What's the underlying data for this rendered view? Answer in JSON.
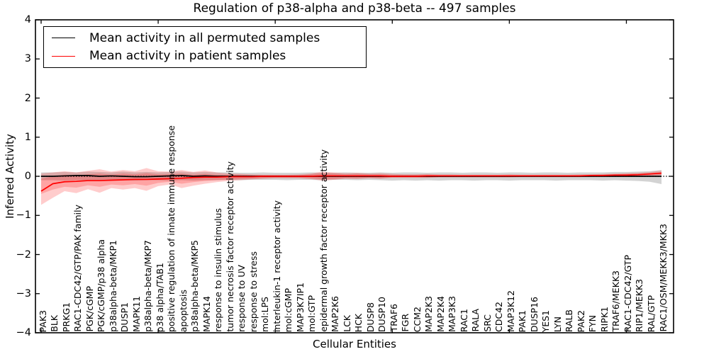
{
  "chart_data": {
    "type": "line",
    "title": "Regulation of p38-alpha and p38-beta -- 497 samples",
    "xlabel": "Cellular Entities",
    "ylabel": "Inferred Activity",
    "ylim": [
      -4,
      4
    ],
    "grid": false,
    "legend_position": "upper left",
    "zero_line": "dotted",
    "yticks": [
      4,
      3,
      2,
      1,
      0,
      -1,
      -2,
      -3,
      -4
    ],
    "yticklabels": [
      "4",
      "3",
      "2",
      "1",
      "0",
      "−1",
      "−2",
      "−3",
      "−4"
    ],
    "xtick_marks_at": [
      0,
      10,
      20,
      30,
      40,
      50
    ],
    "categories": [
      "PAK3",
      "BLK",
      "PRKG1",
      "RAC1-CDC42/GTP/PAK family",
      "PGK/cGMP",
      "PGK/cGMP/p38 alpha",
      "p38alpha-beta/MKP1",
      "DUSP1",
      "MAPK11",
      "p38alpha-beta/MKP7",
      "p38 alpha/TAB1",
      "positive regulation of innate immune response",
      "apoptosis",
      "p38alpha-beta/MKP5",
      "MAPK14",
      "response to insulin stimulus",
      "tumor necrosis factor receptor activity",
      "response to UV",
      "response to stress",
      "mol:LPS",
      "interleukin-1 receptor activity",
      "mol:cGMP",
      "MAP3K7IP1",
      "mol:GTP",
      "epidermal growth factor receptor activity",
      "MAP2K6",
      "LCK",
      "HCK",
      "DUSP8",
      "DUSP10",
      "TRAF6",
      "FGR",
      "CCM2",
      "MAP2K3",
      "MAP2K4",
      "MAP3K3",
      "RAC1",
      "RALA",
      "SRC",
      "CDC42",
      "MAP3K12",
      "PAK1",
      "DUSP16",
      "YES1",
      "LYN",
      "RALB",
      "PAK2",
      "FYN",
      "RIPK1",
      "TRAF6/MEKK3",
      "RAC1-CDC42/GTP",
      "RIP1/MEKK3",
      "RAL/GTP",
      "RAC1/OSM/MEKK3/MKK3"
    ],
    "series": [
      {
        "name": "Mean activity in all permuted samples",
        "color": "#000000",
        "values": [
          0.0,
          0.0,
          0.01,
          0.02,
          0.02,
          0.0,
          0.01,
          0.0,
          -0.01,
          -0.01,
          0.0,
          0.01,
          0.02,
          0.0,
          0.01,
          0.0,
          0.0,
          0.0,
          0.0,
          0.0,
          0.0,
          0.0,
          0.0,
          0.0,
          0.0,
          0.0,
          0.0,
          0.0,
          0.0,
          0.0,
          0.0,
          0.0,
          0.0,
          0.0,
          0.0,
          0.0,
          0.0,
          0.0,
          0.0,
          0.0,
          0.0,
          0.0,
          0.0,
          0.0,
          0.0,
          0.0,
          0.0,
          0.0,
          0.0,
          0.0,
          0.0,
          0.0,
          0.0,
          0.0
        ]
      },
      {
        "name": "Mean activity in patient samples",
        "color": "#ff0000",
        "values": [
          -0.38,
          -0.19,
          -0.14,
          -0.13,
          -0.11,
          -0.11,
          -0.1,
          -0.09,
          -0.08,
          -0.08,
          -0.07,
          -0.06,
          -0.05,
          -0.03,
          -0.02,
          -0.02,
          -0.01,
          -0.01,
          -0.01,
          0.0,
          0.0,
          0.0,
          0.0,
          0.0,
          0.01,
          0.01,
          0.01,
          0.01,
          0.01,
          0.01,
          0.0,
          0.0,
          0.0,
          0.01,
          0.01,
          0.01,
          0.01,
          0.01,
          0.01,
          0.01,
          0.01,
          0.01,
          0.01,
          0.01,
          0.01,
          0.01,
          0.01,
          0.02,
          0.02,
          0.03,
          0.03,
          0.04,
          0.06,
          0.08
        ]
      }
    ],
    "bands": [
      {
        "name": "permuted-samples-band",
        "color": "#808080",
        "opacity": 0.35,
        "low": [
          -0.1,
          -0.1,
          -0.11,
          -0.1,
          -0.11,
          -0.1,
          -0.11,
          -0.1,
          -0.11,
          -0.1,
          -0.1,
          -0.11,
          -0.1,
          -0.11,
          -0.1,
          -0.1,
          -0.09,
          -0.1,
          -0.09,
          -0.09,
          -0.09,
          -0.1,
          -0.09,
          -0.09,
          -0.1,
          -0.09,
          -0.09,
          -0.1,
          -0.09,
          -0.1,
          -0.11,
          -0.1,
          -0.11,
          -0.1,
          -0.11,
          -0.1,
          -0.1,
          -0.11,
          -0.1,
          -0.1,
          -0.11,
          -0.1,
          -0.1,
          -0.1,
          -0.11,
          -0.1,
          -0.1,
          -0.1,
          -0.11,
          -0.1,
          -0.11,
          -0.12,
          -0.14,
          -0.2
        ],
        "high": [
          0.1,
          0.1,
          0.11,
          0.1,
          0.12,
          0.11,
          0.1,
          0.12,
          0.1,
          0.11,
          0.1,
          0.11,
          0.12,
          0.1,
          0.11,
          0.1,
          0.1,
          0.09,
          0.09,
          0.1,
          0.09,
          0.09,
          0.09,
          0.1,
          0.09,
          0.09,
          0.1,
          0.09,
          0.09,
          0.1,
          0.09,
          0.1,
          0.1,
          0.09,
          0.1,
          0.1,
          0.09,
          0.1,
          0.1,
          0.09,
          0.1,
          0.1,
          0.09,
          0.1,
          0.1,
          0.09,
          0.1,
          0.1,
          0.1,
          0.11,
          0.11,
          0.12,
          0.13,
          0.16
        ]
      },
      {
        "name": "patient-samples-band-outer",
        "color": "#ff0000",
        "opacity": 0.2,
        "low": [
          -0.73,
          -0.55,
          -0.38,
          -0.43,
          -0.33,
          -0.42,
          -0.3,
          -0.34,
          -0.3,
          -0.37,
          -0.25,
          -0.21,
          -0.3,
          -0.24,
          -0.19,
          -0.15,
          -0.12,
          -0.1,
          -0.08,
          -0.06,
          -0.05,
          -0.05,
          -0.05,
          -0.07,
          -0.11,
          -0.09,
          -0.06,
          -0.07,
          -0.05,
          -0.06,
          -0.04,
          -0.04,
          -0.04,
          -0.04,
          -0.03,
          -0.03,
          -0.03,
          -0.03,
          -0.03,
          -0.03,
          -0.03,
          -0.02,
          -0.02,
          -0.02,
          -0.02,
          -0.02,
          -0.02,
          -0.01,
          -0.01,
          0.0,
          0.0,
          0.01,
          0.02,
          0.03
        ],
        "high": [
          0.07,
          0.1,
          0.13,
          0.1,
          0.14,
          0.18,
          0.12,
          0.16,
          0.13,
          0.21,
          0.13,
          0.12,
          0.16,
          0.11,
          0.15,
          0.1,
          0.07,
          0.06,
          0.05,
          0.04,
          0.04,
          0.04,
          0.05,
          0.07,
          0.12,
          0.1,
          0.08,
          0.09,
          0.07,
          0.08,
          0.06,
          0.05,
          0.05,
          0.06,
          0.05,
          0.05,
          0.04,
          0.04,
          0.04,
          0.04,
          0.05,
          0.04,
          0.04,
          0.04,
          0.04,
          0.04,
          0.05,
          0.05,
          0.06,
          0.07,
          0.08,
          0.09,
          0.11,
          0.14
        ]
      },
      {
        "name": "patient-samples-band-inner",
        "color": "#ff0000",
        "opacity": 0.2,
        "low": [
          -0.45,
          -0.34,
          -0.27,
          -0.29,
          -0.23,
          -0.27,
          -0.21,
          -0.23,
          -0.2,
          -0.24,
          -0.17,
          -0.14,
          -0.19,
          -0.15,
          -0.12,
          -0.1,
          -0.09,
          -0.07,
          -0.06,
          -0.05,
          -0.04,
          -0.04,
          -0.04,
          -0.05,
          -0.08,
          -0.07,
          -0.05,
          -0.05,
          -0.04,
          -0.05,
          -0.03,
          -0.03,
          -0.03,
          -0.03,
          -0.02,
          -0.02,
          -0.02,
          -0.02,
          -0.02,
          -0.02,
          -0.02,
          -0.02,
          -0.02,
          -0.02,
          -0.02,
          -0.02,
          -0.02,
          -0.01,
          -0.01,
          0.0,
          0.0,
          0.01,
          0.02,
          0.03
        ],
        "high": [
          -0.06,
          0.0,
          0.04,
          0.02,
          0.05,
          0.07,
          0.04,
          0.07,
          0.05,
          0.08,
          0.05,
          0.05,
          0.07,
          0.04,
          0.06,
          0.04,
          0.04,
          0.04,
          0.03,
          0.03,
          0.03,
          0.03,
          0.03,
          0.05,
          0.08,
          0.07,
          0.05,
          0.06,
          0.05,
          0.05,
          0.04,
          0.04,
          0.04,
          0.04,
          0.03,
          0.03,
          0.03,
          0.03,
          0.03,
          0.03,
          0.03,
          0.03,
          0.03,
          0.03,
          0.03,
          0.03,
          0.03,
          0.04,
          0.04,
          0.05,
          0.06,
          0.07,
          0.08,
          0.1
        ]
      }
    ]
  },
  "legend": {
    "items": [
      {
        "label": "Mean activity in all permuted samples",
        "color": "#000000"
      },
      {
        "label": "Mean activity in patient samples",
        "color": "#ff0000"
      }
    ]
  }
}
